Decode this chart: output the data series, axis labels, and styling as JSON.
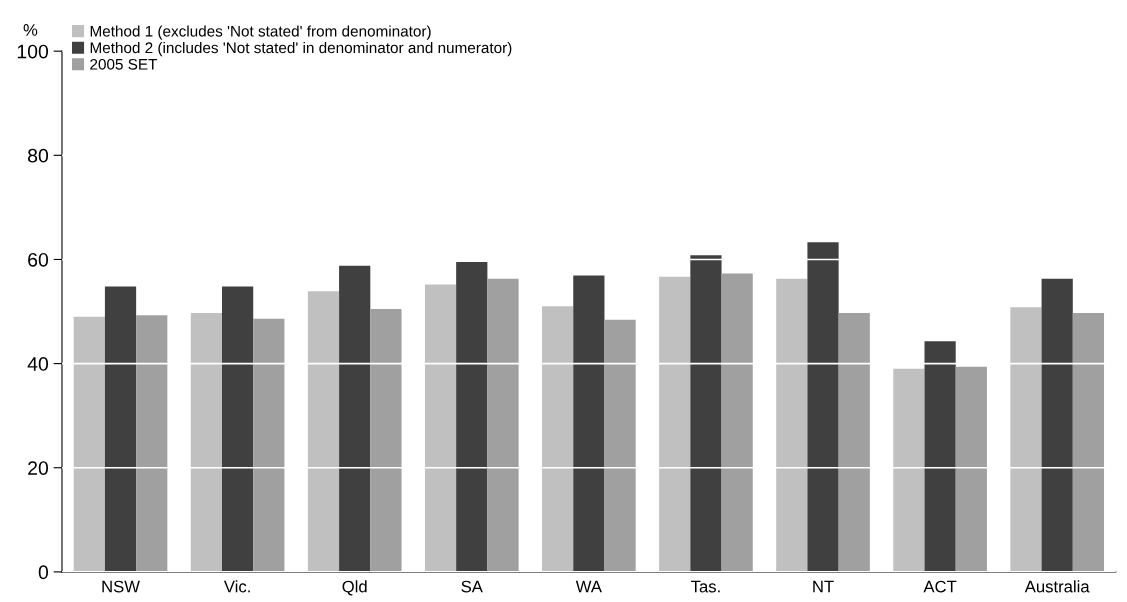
{
  "chart_data": {
    "type": "bar",
    "ylabel": "%",
    "categories": [
      "NSW",
      "Vic.",
      "Qld",
      "SA",
      "WA",
      "Tas.",
      "NT",
      "ACT",
      "Australia"
    ],
    "series": [
      {
        "name": "Method 1 (excludes 'Not stated' from denominator)",
        "color": "#c0c0c0",
        "values": [
          49.0,
          49.7,
          53.9,
          55.2,
          51.0,
          56.7,
          56.3,
          39.0,
          50.8
        ]
      },
      {
        "name": "Method 2 (includes 'Not stated' in denominator and numerator)",
        "color": "#404040",
        "values": [
          54.8,
          54.8,
          58.8,
          59.5,
          56.9,
          60.8,
          63.3,
          44.3,
          56.3
        ]
      },
      {
        "name": "2005 SET",
        "color": "#a0a0a0",
        "values": [
          49.3,
          48.6,
          50.5,
          56.3,
          48.4,
          57.3,
          49.7,
          39.4,
          49.7
        ]
      }
    ],
    "ylim": [
      0,
      100
    ],
    "yticks": [
      0,
      20,
      40,
      60,
      80,
      100
    ],
    "grid": "y",
    "legend": "top left"
  }
}
